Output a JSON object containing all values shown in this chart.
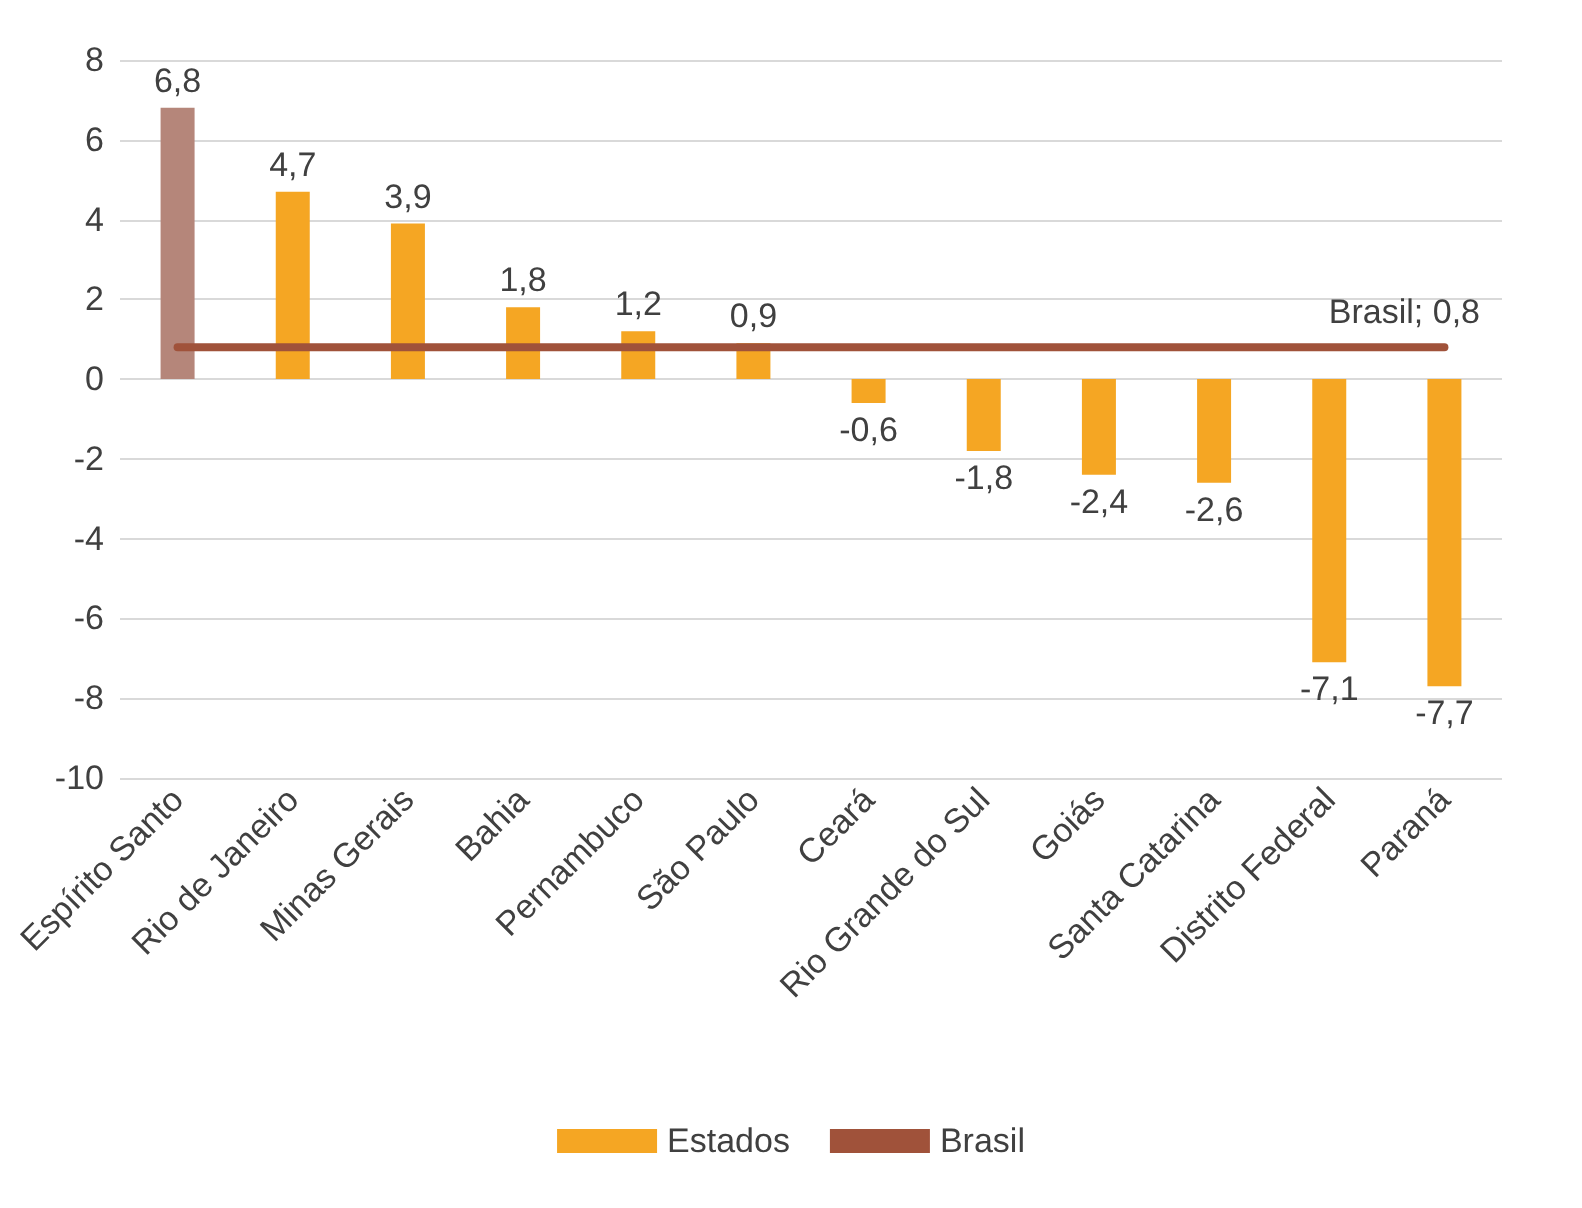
{
  "chart_data": {
    "type": "bar",
    "categories": [
      "Espírito Santo",
      "Rio de Janeiro",
      "Minas Gerais",
      "Bahia",
      "Pernambuco",
      "São Paulo",
      "Ceará",
      "Rio Grande do Sul",
      "Goiás",
      "Santa Catarina",
      "Distrito Federal",
      "Paraná"
    ],
    "series": [
      {
        "name": "Estados",
        "color": "#f5a623",
        "colors": [
          "#b5867a",
          "#f5a623",
          "#f5a623",
          "#f5a623",
          "#f5a623",
          "#f5a623",
          "#f5a623",
          "#f5a623",
          "#f5a623",
          "#f5a623",
          "#f5a623",
          "#f5a623"
        ],
        "values": [
          6.8,
          4.7,
          3.9,
          1.8,
          1.2,
          0.9,
          -0.6,
          -1.8,
          -2.4,
          -2.6,
          -7.1,
          -7.7
        ],
        "value_labels": [
          "6,8",
          "4,7",
          "3,9",
          "1,8",
          "1,2",
          "0,9",
          "-0,6",
          "-1,8",
          "-2,4",
          "-2,6",
          "-7,1",
          "-7,7"
        ]
      },
      {
        "name": "Brasil",
        "type": "line",
        "color": "#a0523a",
        "values": [
          0.8,
          0.8,
          0.8,
          0.8,
          0.8,
          0.8,
          0.8,
          0.8,
          0.8,
          0.8,
          0.8,
          0.8
        ],
        "value_labels": [
          null,
          null,
          null,
          null,
          null,
          null,
          null,
          null,
          null,
          null,
          null,
          "Brasil; 0,8"
        ]
      }
    ],
    "ylim": [
      -10,
      8
    ],
    "yticks": [
      -10,
      -8,
      -6,
      -4,
      -2,
      0,
      2,
      4,
      6,
      8
    ],
    "grid": "y",
    "legend": "bottom"
  }
}
